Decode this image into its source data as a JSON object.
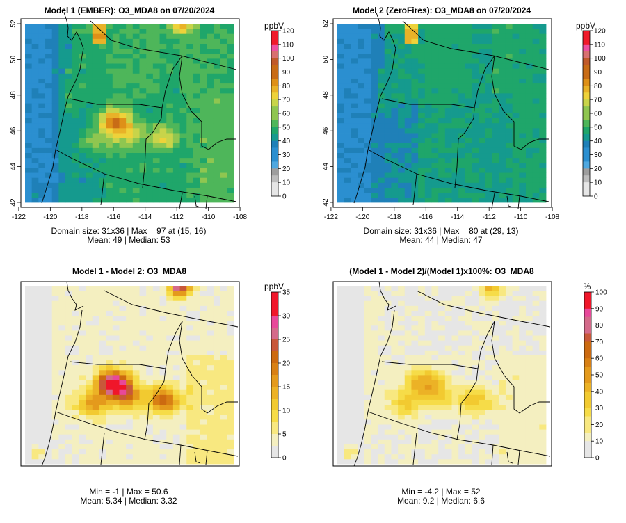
{
  "palettes": {
    "ozone": [
      "#e6e6e6",
      "#bdbdbd",
      "#9e9e9e",
      "#4fa8e0",
      "#2b8fd0",
      "#1f80b8",
      "#159a8e",
      "#1fa66a",
      "#4eb65a",
      "#8fc650",
      "#c8d44a",
      "#eed23a",
      "#e9b228",
      "#de9018",
      "#c86c16",
      "#c05a2a",
      "#d87070",
      "#ee50a0",
      "#f01a2a"
    ],
    "diff": [
      "#e6e6e6",
      "#f4efc0",
      "#f8e880",
      "#f6dc48",
      "#f2ca30",
      "#ecb226",
      "#e49a1c",
      "#d88014",
      "#cc6a10",
      "#c8583a",
      "#d46a8a",
      "#e8489a",
      "#f0162a"
    ]
  },
  "panels": [
    {
      "id": "model1",
      "title": "Model 1 (EMBER): O3_MDA8 on 07/20/2024",
      "unit": "ppbV",
      "legend_ticks": [
        "120",
        "110",
        "100",
        "90",
        "80",
        "70",
        "60",
        "50",
        "40",
        "30",
        "20",
        "10",
        "0"
      ],
      "x_ticks": [
        "-122",
        "-120",
        "-118",
        "-116",
        "-114",
        "-112",
        "-110",
        "-108"
      ],
      "y_ticks": [
        "42",
        "44",
        "46",
        "48",
        "50",
        "52"
      ],
      "stats_line1": "Domain size: 31x36 | Max = 97 at (15, 16)",
      "stats_line2": "Mean: 49  |  Median: 53"
    },
    {
      "id": "model2",
      "title": "Model 2 (ZeroFires): O3_MDA8 on 07/20/2024",
      "unit": "ppbV",
      "legend_ticks": [
        "120",
        "110",
        "100",
        "90",
        "80",
        "70",
        "60",
        "50",
        "40",
        "30",
        "20",
        "10",
        "0"
      ],
      "x_ticks": [
        "-122",
        "-120",
        "-118",
        "-116",
        "-114",
        "-112",
        "-110",
        "-108"
      ],
      "y_ticks": [
        "42",
        "44",
        "46",
        "48",
        "50",
        "52"
      ],
      "stats_line1": "Domain size: 31x36 | Max = 80 at (29, 13)",
      "stats_line2": "Mean: 44  |  Median: 47"
    },
    {
      "id": "diff",
      "title": "Model 1 - Model 2: O3_MDA8",
      "unit": "ppbV",
      "legend_ticks": [
        "35",
        "30",
        "25",
        "20",
        "15",
        "10",
        "5",
        "0"
      ],
      "stats_line1": "Min = -1 | Max = 50.6",
      "stats_line2": "Mean: 5.34  |  Median: 3.32"
    },
    {
      "id": "pct",
      "title": "(Model 1 - Model 2)/(Model 1)x100%: O3_MDA8",
      "unit": "%",
      "legend_ticks": [
        "100",
        "90",
        "80",
        "70",
        "60",
        "50",
        "40",
        "30",
        "20",
        "10",
        "0"
      ],
      "stats_line1": "Min = -4.2 | Max = 52",
      "stats_line2": "Mean: 9.2  |  Median: 6.6"
    }
  ],
  "chart_data": [
    {
      "type": "heatmap",
      "title": "Model 1 (EMBER): O3_MDA8 on 07/20/2024",
      "legend_title": "ppbV",
      "xlim": [
        -122,
        -108
      ],
      "ylim": [
        42,
        52
      ],
      "colorbar_range": [
        0,
        120
      ],
      "grid_size": "31x36",
      "max": 97,
      "max_location": "(15, 16)",
      "mean": 49,
      "median": 53,
      "hotspots": [
        {
          "lon": -116.0,
          "lat": 46.6,
          "value": 88
        },
        {
          "lon": -112.8,
          "lat": 45.5,
          "value": 80
        },
        {
          "lon": -114.0,
          "lat": 45.0,
          "value": 78
        },
        {
          "lon": -112.0,
          "lat": 51.8,
          "value": 80
        },
        {
          "lon": -116.8,
          "lat": 51.7,
          "value": 78
        }
      ]
    },
    {
      "type": "heatmap",
      "title": "Model 2 (ZeroFires): O3_MDA8 on 07/20/2024",
      "legend_title": "ppbV",
      "xlim": [
        -122,
        -108
      ],
      "ylim": [
        42,
        52
      ],
      "colorbar_range": [
        0,
        120
      ],
      "grid_size": "31x36",
      "max": 80,
      "max_location": "(29, 13)",
      "mean": 44,
      "median": 47
    },
    {
      "type": "heatmap",
      "title": "Model 1 - Model 2: O3_MDA8",
      "legend_title": "ppbV",
      "colorbar_range": [
        0,
        35
      ],
      "min": -1,
      "max": 50.6,
      "mean": 5.34,
      "median": 3.32,
      "hotspots": [
        {
          "lon": -116.0,
          "lat": 46.6,
          "value": 35
        },
        {
          "lon": -112.8,
          "lat": 45.6,
          "value": 22
        },
        {
          "lon": -111.8,
          "lat": 51.9,
          "value": 30
        }
      ]
    },
    {
      "type": "heatmap",
      "title": "(Model 1 - Model 2)/(Model 1)x100%: O3_MDA8",
      "legend_title": "%",
      "colorbar_range": [
        0,
        100
      ],
      "min": -4.2,
      "max": 52,
      "mean": 9.2,
      "median": 6.6
    }
  ]
}
